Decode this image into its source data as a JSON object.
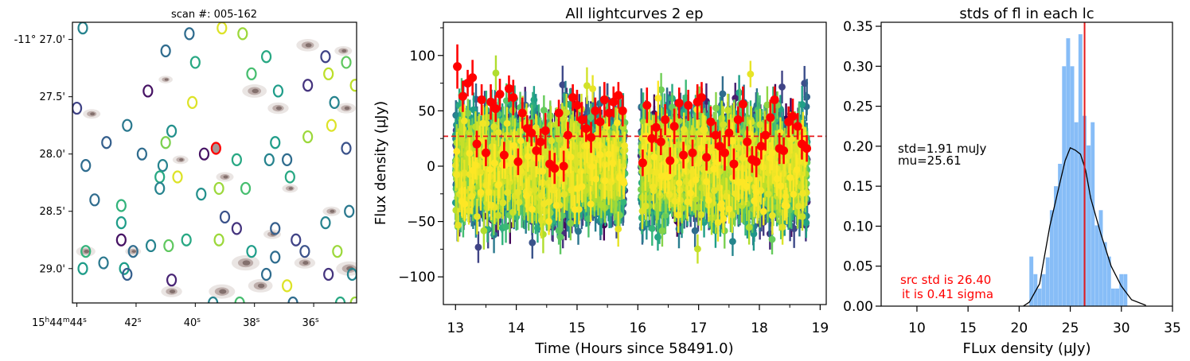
{
  "chart_data": [
    {
      "type": "scatter",
      "panel": "sky-image",
      "title": "scan #: 005-162",
      "x_ticks": [
        {
          "major": "15",
          "sup1": "h",
          "mid": "44",
          "sup2": "m",
          "minor": "44",
          "sup3": "s"
        },
        {
          "major": "42",
          "sup1": "s"
        },
        {
          "major": "40",
          "sup1": "s"
        },
        {
          "major": "38",
          "sup1": "s"
        },
        {
          "major": "36",
          "sup1": "s"
        }
      ],
      "y_ticks": [
        "-11° 27.0'",
        "27.5'",
        "28.0'",
        "28.5'",
        "29.0'"
      ],
      "ra_range_s": [
        44.15,
        34.55
      ],
      "dec_range_arcmin": [
        26.85,
        29.3
      ],
      "target": {
        "ra_s": 39.3,
        "dec_arcmin": 27.95
      },
      "blobs": [
        {
          "ra_s": 38.0,
          "dec": 27.45,
          "s": 1.4
        },
        {
          "ra_s": 39.0,
          "dec": 28.2,
          "s": 1.0
        },
        {
          "ra_s": 37.2,
          "dec": 27.6,
          "s": 1.2
        },
        {
          "ra_s": 43.5,
          "dec": 27.65,
          "s": 1.0
        },
        {
          "ra_s": 36.2,
          "dec": 27.05,
          "s": 1.3
        },
        {
          "ra_s": 35.0,
          "dec": 27.1,
          "s": 1.0
        },
        {
          "ra_s": 38.3,
          "dec": 28.95,
          "s": 1.6
        },
        {
          "ra_s": 40.8,
          "dec": 29.2,
          "s": 1.2
        },
        {
          "ra_s": 37.8,
          "dec": 29.15,
          "s": 1.4
        },
        {
          "ra_s": 34.8,
          "dec": 29.0,
          "s": 1.5
        },
        {
          "ra_s": 40.5,
          "dec": 28.05,
          "s": 0.9
        },
        {
          "ra_s": 39.1,
          "dec": 29.2,
          "s": 1.5
        },
        {
          "ra_s": 36.8,
          "dec": 28.3,
          "s": 0.9
        },
        {
          "ra_s": 43.7,
          "dec": 28.85,
          "s": 1.1
        },
        {
          "ra_s": 42.1,
          "dec": 28.85,
          "s": 0.9
        },
        {
          "ra_s": 35.4,
          "dec": 28.5,
          "s": 1.0
        },
        {
          "ra_s": 41.0,
          "dec": 27.35,
          "s": 0.8
        },
        {
          "ra_s": 37.4,
          "dec": 28.7,
          "s": 1.0
        },
        {
          "ra_s": 34.9,
          "dec": 27.6,
          "s": 1.1
        },
        {
          "ra_s": 36.3,
          "dec": 28.95,
          "s": 1.2
        }
      ],
      "apertures": [
        {
          "ra_s": 43.8,
          "dec": 26.9,
          "c": 0.45
        },
        {
          "ra_s": 40.2,
          "dec": 26.95,
          "c": 0.35
        },
        {
          "ra_s": 39.1,
          "dec": 26.9,
          "c": 0.95
        },
        {
          "ra_s": 38.4,
          "dec": 26.95,
          "c": 0.85
        },
        {
          "ra_s": 41.0,
          "dec": 27.1,
          "c": 0.35
        },
        {
          "ra_s": 40.0,
          "dec": 27.2,
          "c": 0.6
        },
        {
          "ra_s": 38.1,
          "dec": 27.3,
          "c": 0.7
        },
        {
          "ra_s": 37.6,
          "dec": 27.15,
          "c": 0.6
        },
        {
          "ra_s": 35.6,
          "dec": 27.15,
          "c": 0.2
        },
        {
          "ra_s": 35.5,
          "dec": 27.3,
          "c": 0.9
        },
        {
          "ra_s": 34.9,
          "dec": 27.2,
          "c": 0.75
        },
        {
          "ra_s": 34.6,
          "dec": 27.4,
          "c": 0.9
        },
        {
          "ra_s": 35.3,
          "dec": 27.55,
          "c": 0.45
        },
        {
          "ra_s": 36.2,
          "dec": 27.4,
          "c": 0.15
        },
        {
          "ra_s": 37.2,
          "dec": 27.45,
          "c": 0.55
        },
        {
          "ra_s": 41.6,
          "dec": 27.45,
          "c": 0.05
        },
        {
          "ra_s": 40.1,
          "dec": 27.55,
          "c": 0.95
        },
        {
          "ra_s": 44.0,
          "dec": 27.6,
          "c": 0.2
        },
        {
          "ra_s": 42.3,
          "dec": 27.75,
          "c": 0.4
        },
        {
          "ra_s": 40.8,
          "dec": 27.8,
          "c": 0.5
        },
        {
          "ra_s": 41.0,
          "dec": 27.9,
          "c": 0.8
        },
        {
          "ra_s": 41.8,
          "dec": 28.0,
          "c": 0.35
        },
        {
          "ra_s": 41.1,
          "dec": 28.1,
          "c": 0.45
        },
        {
          "ra_s": 41.2,
          "dec": 28.2,
          "c": 0.6
        },
        {
          "ra_s": 39.7,
          "dec": 28.0,
          "c": 0.05
        },
        {
          "ra_s": 37.3,
          "dec": 27.9,
          "c": 0.55
        },
        {
          "ra_s": 36.2,
          "dec": 27.85,
          "c": 0.85
        },
        {
          "ra_s": 35.4,
          "dec": 27.75,
          "c": 0.95
        },
        {
          "ra_s": 34.9,
          "dec": 27.95,
          "c": 0.25
        },
        {
          "ra_s": 40.6,
          "dec": 28.2,
          "c": 0.95
        },
        {
          "ra_s": 38.6,
          "dec": 28.05,
          "c": 0.6
        },
        {
          "ra_s": 37.5,
          "dec": 28.05,
          "c": 0.45
        },
        {
          "ra_s": 36.9,
          "dec": 28.05,
          "c": 0.35
        },
        {
          "ra_s": 36.8,
          "dec": 28.2,
          "c": 0.6
        },
        {
          "ra_s": 38.3,
          "dec": 28.3,
          "c": 0.7
        },
        {
          "ra_s": 39.2,
          "dec": 28.3,
          "c": 0.85
        },
        {
          "ra_s": 41.2,
          "dec": 28.3,
          "c": 0.45
        },
        {
          "ra_s": 43.0,
          "dec": 27.9,
          "c": 0.3
        },
        {
          "ra_s": 43.7,
          "dec": 28.1,
          "c": 0.35
        },
        {
          "ra_s": 42.5,
          "dec": 28.45,
          "c": 0.65
        },
        {
          "ra_s": 43.4,
          "dec": 28.4,
          "c": 0.35
        },
        {
          "ra_s": 39.8,
          "dec": 28.35,
          "c": 0.5
        },
        {
          "ra_s": 38.6,
          "dec": 28.65,
          "c": 0.15
        },
        {
          "ra_s": 39.2,
          "dec": 28.75,
          "c": 0.85
        },
        {
          "ra_s": 39.0,
          "dec": 28.55,
          "c": 0.25
        },
        {
          "ra_s": 37.3,
          "dec": 28.65,
          "c": 0.3
        },
        {
          "ra_s": 36.6,
          "dec": 28.75,
          "c": 0.2
        },
        {
          "ra_s": 35.6,
          "dec": 28.6,
          "c": 0.45
        },
        {
          "ra_s": 34.8,
          "dec": 28.5,
          "c": 0.4
        },
        {
          "ra_s": 42.5,
          "dec": 28.6,
          "c": 0.55
        },
        {
          "ra_s": 42.5,
          "dec": 28.75,
          "c": 0.05
        },
        {
          "ra_s": 42.1,
          "dec": 28.85,
          "c": 0.35
        },
        {
          "ra_s": 41.5,
          "dec": 28.8,
          "c": 0.45
        },
        {
          "ra_s": 40.9,
          "dec": 28.8,
          "c": 0.75
        },
        {
          "ra_s": 40.3,
          "dec": 28.75,
          "c": 0.6
        },
        {
          "ra_s": 38.1,
          "dec": 28.85,
          "c": 0.55
        },
        {
          "ra_s": 37.3,
          "dec": 28.9,
          "c": 0.35
        },
        {
          "ra_s": 36.3,
          "dec": 28.85,
          "c": 0.25
        },
        {
          "ra_s": 35.2,
          "dec": 28.85,
          "c": 0.85
        },
        {
          "ra_s": 43.7,
          "dec": 28.85,
          "c": 0.65
        },
        {
          "ra_s": 43.1,
          "dec": 28.95,
          "c": 0.4
        },
        {
          "ra_s": 42.4,
          "dec": 29.0,
          "c": 0.55
        },
        {
          "ra_s": 42.3,
          "dec": 29.05,
          "c": 0.3
        },
        {
          "ra_s": 43.8,
          "dec": 29.0,
          "c": 0.55
        },
        {
          "ra_s": 40.8,
          "dec": 29.1,
          "c": 0.1
        },
        {
          "ra_s": 37.6,
          "dec": 29.05,
          "c": 0.35
        },
        {
          "ra_s": 36.9,
          "dec": 29.15,
          "c": 0.95
        },
        {
          "ra_s": 35.5,
          "dec": 29.05,
          "c": 0.15
        },
        {
          "ra_s": 34.7,
          "dec": 29.05,
          "c": 0.45
        },
        {
          "ra_s": 39.4,
          "dec": 29.3,
          "c": 0.45
        },
        {
          "ra_s": 38.5,
          "dec": 29.3,
          "c": 0.7
        },
        {
          "ra_s": 36.7,
          "dec": 29.3,
          "c": 0.35
        },
        {
          "ra_s": 35.1,
          "dec": 29.3,
          "c": 0.6
        },
        {
          "ra_s": 34.6,
          "dec": 29.3,
          "c": 0.85
        }
      ]
    },
    {
      "type": "scatter",
      "panel": "lightcurves",
      "title": "All lightcurves 2 ep",
      "xlabel": "Time (Hours since 58491.0)",
      "ylabel": "Flux density (µJy)",
      "xlim": [
        12.8,
        19.1
      ],
      "ylim": [
        -125,
        130
      ],
      "x_ticks": [
        13,
        14,
        15,
        16,
        17,
        18,
        19
      ],
      "y_ticks": [
        -100,
        -50,
        0,
        50,
        100
      ],
      "epochs": [
        [
          13.0,
          15.8
        ],
        [
          16.05,
          18.8
        ]
      ],
      "background": {
        "n_curves": 60,
        "n_points_per_epoch": 45,
        "flux_center": 0,
        "flux_scatter": 22,
        "error_bar": 14
      },
      "reference_line": {
        "y": 27,
        "color": "#e41a1c",
        "style": "dashed"
      },
      "source_curve": {
        "color": "#ff0000",
        "t": [
          13.03,
          13.12,
          13.2,
          13.28,
          13.35,
          13.43,
          13.5,
          13.58,
          13.66,
          13.73,
          13.8,
          13.88,
          13.95,
          14.03,
          14.1,
          14.18,
          14.25,
          14.33,
          14.4,
          14.48,
          14.55,
          14.63,
          14.7,
          14.78,
          14.85,
          14.93,
          15.0,
          15.08,
          15.15,
          15.23,
          15.3,
          15.38,
          15.45,
          15.53,
          15.6,
          15.68,
          15.75,
          16.08,
          16.15,
          16.23,
          16.3,
          16.38,
          16.45,
          16.53,
          16.6,
          16.68,
          16.75,
          16.83,
          16.9,
          16.98,
          17.05,
          17.13,
          17.2,
          17.28,
          17.35,
          17.43,
          17.5,
          17.58,
          17.65,
          17.73,
          17.8,
          17.88,
          17.95,
          18.03,
          18.1,
          18.18,
          18.25,
          18.33,
          18.4,
          18.48,
          18.55,
          18.63,
          18.7,
          18.78
        ],
        "flux": [
          90,
          63,
          75,
          80,
          20,
          60,
          12,
          58,
          52,
          65,
          10,
          70,
          62,
          4,
          48,
          34,
          30,
          14,
          22,
          32,
          2,
          -2,
          48,
          0,
          28,
          62,
          55,
          42,
          34,
          26,
          50,
          40,
          60,
          48,
          58,
          64,
          50,
          3,
          55,
          25,
          35,
          22,
          42,
          5,
          36,
          57,
          10,
          55,
          12,
          58,
          62,
          8,
          40,
          28,
          18,
          12,
          30,
          2,
          42,
          56,
          22,
          6,
          4,
          18,
          28,
          44,
          60,
          16,
          14,
          40,
          45,
          36,
          20,
          16
        ],
        "error": [
          20,
          14,
          12,
          16,
          12,
          14,
          12,
          16,
          12,
          14,
          12,
          12,
          16,
          12,
          14,
          12,
          12,
          14,
          12,
          16,
          12,
          14,
          12,
          14,
          12,
          12,
          14,
          16,
          12,
          14,
          12,
          14,
          16,
          12,
          14,
          12,
          14,
          12,
          16,
          12,
          14,
          12,
          14,
          12,
          16,
          14,
          12,
          14,
          12,
          16,
          14,
          12,
          14,
          12,
          14,
          16,
          12,
          14,
          12,
          16,
          14,
          12,
          14,
          12,
          14,
          16,
          12,
          14,
          12,
          14,
          16,
          12,
          14,
          12
        ]
      }
    },
    {
      "type": "bar",
      "panel": "histogram",
      "title": "stds of fl in each lc",
      "xlabel": "FLux density (μJy)",
      "ylabel": "",
      "xlim": [
        6.5,
        35.0
      ],
      "ylim": [
        0,
        0.355
      ],
      "x_ticks": [
        10,
        15,
        20,
        25,
        30,
        35
      ],
      "y_ticks": [
        "0.00",
        "0.05",
        "0.10",
        "0.15",
        "0.20",
        "0.25",
        "0.30",
        "0.35"
      ],
      "bin_edges": [
        21.0,
        21.4,
        21.8,
        22.2,
        22.6,
        23.0,
        23.4,
        23.8,
        24.2,
        24.6,
        25.0,
        25.4,
        25.8,
        26.2,
        26.6,
        27.0,
        27.4,
        27.8,
        28.2,
        28.6,
        29.0,
        29.4,
        29.8,
        30.2,
        30.6
      ],
      "densities": [
        0.062,
        0.04,
        0.022,
        0.04,
        0.061,
        0.12,
        0.15,
        0.178,
        0.3,
        0.335,
        0.3,
        0.23,
        0.34,
        0.238,
        0.201,
        0.23,
        0.101,
        0.12,
        0.08,
        0.062,
        0.022,
        0.022,
        0.04,
        0.04
      ],
      "bar_color": "#87bdf7",
      "gaussian_fit": {
        "mu": 25.61,
        "std": 1.91,
        "x": [
          20.4,
          21.0,
          22.0,
          23.0,
          24.0,
          24.5,
          25.0,
          25.5,
          26.0,
          26.5,
          27.0,
          28.0,
          29.0,
          30.0,
          31.0,
          32.4
        ],
        "y": [
          0.0,
          0.005,
          0.028,
          0.1,
          0.155,
          0.182,
          0.198,
          0.195,
          0.19,
          0.17,
          0.135,
          0.09,
          0.05,
          0.025,
          0.008,
          0.001
        ]
      },
      "src_line": {
        "x": 26.4,
        "color": "#e41a1c"
      },
      "annotation_black": [
        "std=1.91 muJy",
        "mu=25.61"
      ],
      "annotation_red": [
        "src std is 26.40",
        "it is 0.41 sigma"
      ]
    }
  ]
}
